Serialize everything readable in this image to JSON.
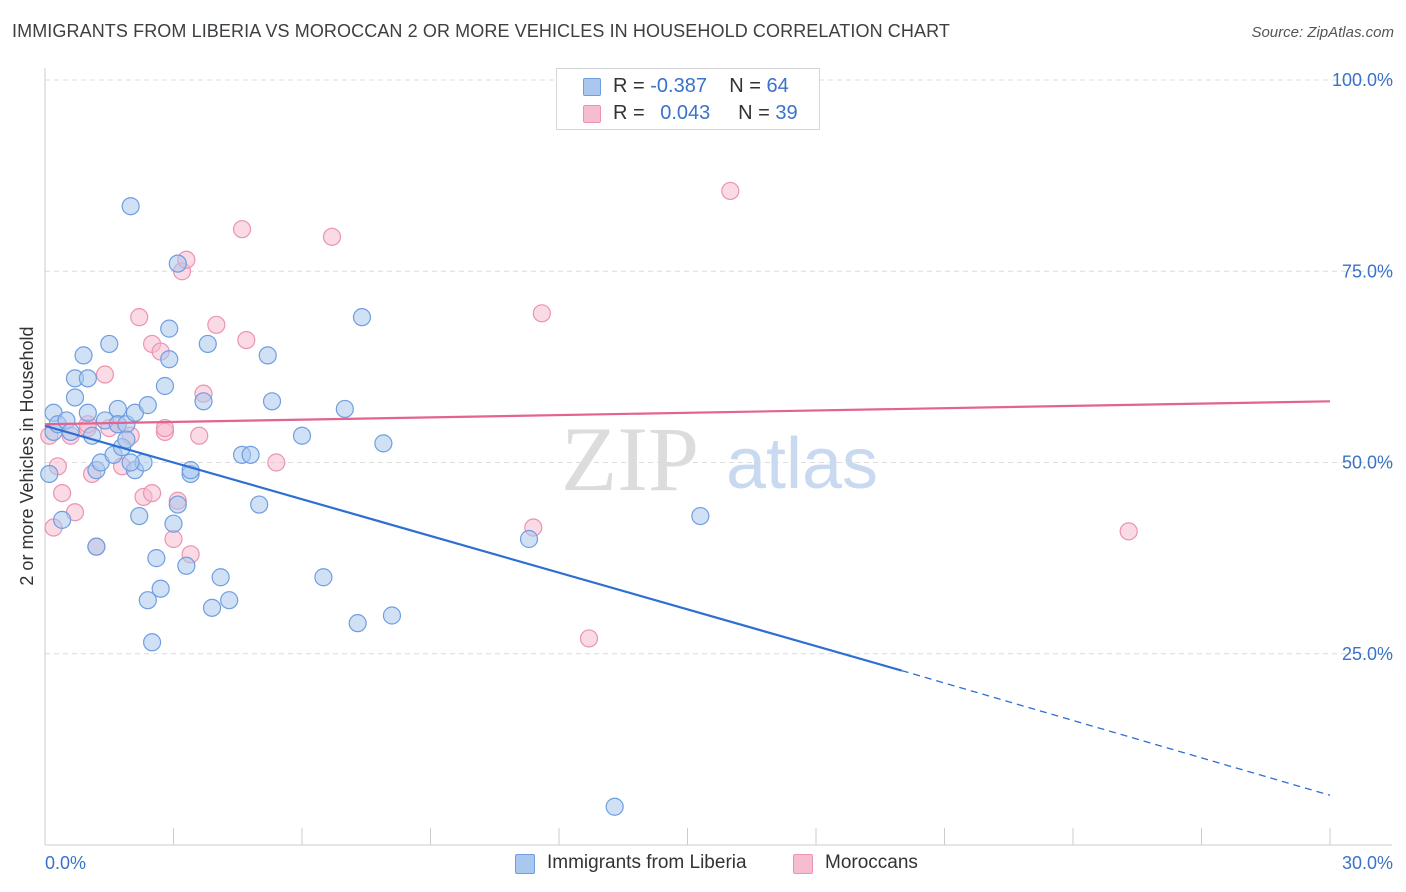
{
  "title": "IMMIGRANTS FROM LIBERIA VS MOROCCAN 2 OR MORE VEHICLES IN HOUSEHOLD CORRELATION CHART",
  "source": "Source: ZipAtlas.com",
  "watermark": {
    "zip": "ZIP",
    "atlas": "atlas"
  },
  "legend_stats": [
    {
      "r_label": "R =",
      "r_value": "-0.387",
      "n_label": "N =",
      "n_value": "64"
    },
    {
      "r_label": "R =",
      "r_value": "0.043",
      "n_label": "N =",
      "n_value": "39"
    }
  ],
  "colors": {
    "blue_fill": "#aac8ef",
    "blue_stroke": "#6f9ee0",
    "blue_line": "#2f6fd1",
    "pink_fill": "#f6bcd0",
    "pink_stroke": "#ec93b2",
    "pink_line": "#e2648f",
    "tick_label": "#3a72c8",
    "grid": "#dcdcdc"
  },
  "chart_data": {
    "type": "scatter",
    "title": "IMMIGRANTS FROM LIBERIA VS MOROCCAN 2 OR MORE VEHICLES IN HOUSEHOLD CORRELATION CHART",
    "xlabel": "",
    "ylabel": "2 or more Vehicles in Household",
    "xlim": [
      0,
      30
    ],
    "ylim": [
      0,
      100
    ],
    "x_tick_labels": [
      "0.0%",
      "30.0%"
    ],
    "y_ticks": [
      25,
      50,
      75,
      100
    ],
    "y_tick_labels": [
      "25.0%",
      "50.0%",
      "75.0%",
      "100.0%"
    ],
    "grid": true,
    "legend_position": "bottom",
    "series": [
      {
        "name": "Immigrants from Liberia",
        "color": "#6f9ee0",
        "r": -0.387,
        "n": 64,
        "trend": {
          "x0": 0.0,
          "y0": 54.8,
          "x1": 20.0,
          "y1": 22.8,
          "dashed_to_x": 30.0,
          "dashed_to_y": 6.5
        },
        "points": [
          [
            0.1,
            48.5
          ],
          [
            0.2,
            54.0
          ],
          [
            0.2,
            56.5
          ],
          [
            0.3,
            55.0
          ],
          [
            0.4,
            42.5
          ],
          [
            0.5,
            55.5
          ],
          [
            0.6,
            54.0
          ],
          [
            0.7,
            58.5
          ],
          [
            0.7,
            61.0
          ],
          [
            0.9,
            64.0
          ],
          [
            1.0,
            56.5
          ],
          [
            1.0,
            61.0
          ],
          [
            1.1,
            53.5
          ],
          [
            1.2,
            49.0
          ],
          [
            1.3,
            50.0
          ],
          [
            1.4,
            55.5
          ],
          [
            1.5,
            65.5
          ],
          [
            1.6,
            51.0
          ],
          [
            1.7,
            57.0
          ],
          [
            1.7,
            55.0
          ],
          [
            1.8,
            52.0
          ],
          [
            1.9,
            55.0
          ],
          [
            1.9,
            53.0
          ],
          [
            2.0,
            83.5
          ],
          [
            2.1,
            56.5
          ],
          [
            2.1,
            49.0
          ],
          [
            2.2,
            43.0
          ],
          [
            2.3,
            50.0
          ],
          [
            2.4,
            57.5
          ],
          [
            2.4,
            32.0
          ],
          [
            2.5,
            26.5
          ],
          [
            2.6,
            37.5
          ],
          [
            2.7,
            33.5
          ],
          [
            2.8,
            60.0
          ],
          [
            2.9,
            67.5
          ],
          [
            2.9,
            63.5
          ],
          [
            3.0,
            42.0
          ],
          [
            3.1,
            44.5
          ],
          [
            3.1,
            76.0
          ],
          [
            3.3,
            36.5
          ],
          [
            3.4,
            48.5
          ],
          [
            3.4,
            49.0
          ],
          [
            3.7,
            58.0
          ],
          [
            3.8,
            65.5
          ],
          [
            3.9,
            31.0
          ],
          [
            4.1,
            35.0
          ],
          [
            4.3,
            32.0
          ],
          [
            4.6,
            51.0
          ],
          [
            4.8,
            51.0
          ],
          [
            5.0,
            44.5
          ],
          [
            5.2,
            64.0
          ],
          [
            5.3,
            58.0
          ],
          [
            6.0,
            53.5
          ],
          [
            6.5,
            35.0
          ],
          [
            7.0,
            57.0
          ],
          [
            7.3,
            29.0
          ],
          [
            7.4,
            69.0
          ],
          [
            7.9,
            52.5
          ],
          [
            8.1,
            30.0
          ],
          [
            11.3,
            40.0
          ],
          [
            13.3,
            5.0
          ],
          [
            15.3,
            43.0
          ],
          [
            1.2,
            39.0
          ],
          [
            2.0,
            50.0
          ]
        ]
      },
      {
        "name": "Moroccans",
        "color": "#ec93b2",
        "r": 0.043,
        "n": 39,
        "trend": {
          "x0": 0.0,
          "y0": 55.0,
          "x1": 30.0,
          "y1": 58.0
        },
        "points": [
          [
            0.1,
            53.5
          ],
          [
            0.2,
            41.5
          ],
          [
            0.3,
            49.5
          ],
          [
            0.4,
            46.0
          ],
          [
            0.6,
            53.5
          ],
          [
            0.7,
            43.5
          ],
          [
            1.0,
            54.5
          ],
          [
            1.1,
            48.5
          ],
          [
            1.2,
            39.0
          ],
          [
            1.4,
            61.5
          ],
          [
            1.5,
            54.5
          ],
          [
            1.7,
            55.0
          ],
          [
            1.8,
            49.5
          ],
          [
            2.0,
            53.5
          ],
          [
            2.2,
            69.0
          ],
          [
            2.3,
            45.5
          ],
          [
            2.5,
            46.0
          ],
          [
            2.5,
            65.5
          ],
          [
            2.7,
            64.5
          ],
          [
            2.8,
            54.0
          ],
          [
            3.0,
            40.0
          ],
          [
            3.1,
            45.0
          ],
          [
            3.2,
            75.0
          ],
          [
            3.3,
            76.5
          ],
          [
            3.4,
            38.0
          ],
          [
            3.6,
            53.5
          ],
          [
            3.7,
            59.0
          ],
          [
            4.0,
            68.0
          ],
          [
            4.6,
            80.5
          ],
          [
            4.7,
            66.0
          ],
          [
            5.4,
            50.0
          ],
          [
            6.7,
            79.5
          ],
          [
            11.4,
            41.5
          ],
          [
            11.6,
            69.5
          ],
          [
            12.7,
            27.0
          ],
          [
            16.0,
            85.5
          ],
          [
            25.3,
            41.0
          ],
          [
            1.0,
            55.0
          ],
          [
            2.8,
            54.5
          ]
        ]
      }
    ]
  }
}
